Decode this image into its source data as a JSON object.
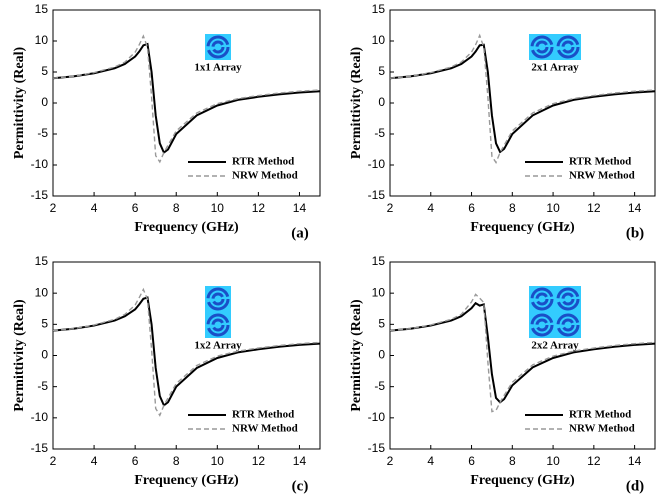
{
  "chart_data": [
    {
      "type": "line",
      "inset_label": "1x1 Array",
      "panel_label": "(a)",
      "xlabel": "Frequency (GHz)",
      "ylabel": "Permittivity (Real)",
      "x": [
        2,
        3,
        4,
        5,
        5.5,
        6,
        6.2,
        6.4,
        6.6,
        6.8,
        7,
        7.2,
        7.4,
        7.6,
        8,
        9,
        10,
        11,
        12,
        13,
        14,
        15
      ],
      "series": [
        {
          "name": "RTR Method",
          "color": "#000000",
          "values": [
            4.0,
            4.3,
            4.8,
            5.6,
            6.3,
            7.5,
            8.3,
            9.3,
            9.5,
            5,
            -2,
            -6.5,
            -8,
            -7.5,
            -5,
            -2,
            -0.4,
            0.5,
            1.0,
            1.4,
            1.7,
            1.9
          ]
        },
        {
          "name": "NRW Method",
          "color": "#999999",
          "values": [
            4.0,
            4.3,
            4.9,
            5.8,
            6.6,
            8.2,
            9.4,
            10.8,
            9,
            1,
            -8.5,
            -9.5,
            -8,
            -6.8,
            -4.5,
            -1.6,
            -0.1,
            0.7,
            1.2,
            1.6,
            1.9,
            2.1
          ]
        }
      ],
      "xlim": [
        2,
        15
      ],
      "xticks": [
        2,
        4,
        6,
        8,
        10,
        12,
        14
      ],
      "ylim": [
        -15,
        15
      ],
      "yticks": [
        -15,
        -10,
        -5,
        0,
        5,
        10,
        15
      ],
      "legend": "lower right"
    },
    {
      "type": "line",
      "inset_label": "2x1 Array",
      "panel_label": "(b)",
      "xlabel": "Frequency (GHz)",
      "ylabel": "Permittivity (Real)",
      "x": [
        2,
        3,
        4,
        5,
        5.5,
        6,
        6.2,
        6.4,
        6.6,
        6.8,
        7,
        7.2,
        7.4,
        7.6,
        8,
        9,
        10,
        11,
        12,
        13,
        14,
        15
      ],
      "series": [
        {
          "name": "RTR Method",
          "color": "#000000",
          "values": [
            4.0,
            4.3,
            4.8,
            5.6,
            6.3,
            7.5,
            8.3,
            9.3,
            9.4,
            5,
            -2,
            -6.5,
            -7.9,
            -7.4,
            -5,
            -2,
            -0.4,
            0.5,
            1.0,
            1.4,
            1.7,
            1.9
          ]
        },
        {
          "name": "NRW Method",
          "color": "#999999",
          "values": [
            4.0,
            4.3,
            4.9,
            5.8,
            6.6,
            8.2,
            9.4,
            10.9,
            9,
            1,
            -8.6,
            -9.6,
            -8,
            -6.8,
            -4.5,
            -1.6,
            -0.1,
            0.7,
            1.2,
            1.6,
            1.9,
            2.1
          ]
        }
      ],
      "xlim": [
        2,
        15
      ],
      "xticks": [
        2,
        4,
        6,
        8,
        10,
        12,
        14
      ],
      "ylim": [
        -15,
        15
      ],
      "yticks": [
        -15,
        -10,
        -5,
        0,
        5,
        10,
        15
      ],
      "legend": "lower right"
    },
    {
      "type": "line",
      "inset_label": "1x2 Array",
      "panel_label": "(c)",
      "xlabel": "Frequency (GHz)",
      "ylabel": "Permittivity (Real)",
      "x": [
        2,
        3,
        4,
        5,
        5.5,
        6,
        6.2,
        6.4,
        6.6,
        6.8,
        7,
        7.2,
        7.4,
        7.6,
        8,
        9,
        10,
        11,
        12,
        13,
        14,
        15
      ],
      "series": [
        {
          "name": "RTR Method",
          "color": "#000000",
          "values": [
            4.0,
            4.3,
            4.8,
            5.6,
            6.3,
            7.4,
            8.2,
            9.1,
            9.3,
            5,
            -2,
            -6.5,
            -8,
            -7.5,
            -5,
            -2,
            -0.4,
            0.5,
            1.0,
            1.4,
            1.7,
            1.9
          ]
        },
        {
          "name": "NRW Method",
          "color": "#999999",
          "values": [
            4.0,
            4.3,
            4.9,
            5.8,
            6.6,
            8.1,
            9.3,
            10.6,
            9,
            1,
            -8.5,
            -9.6,
            -8,
            -6.8,
            -4.5,
            -1.6,
            -0.1,
            0.7,
            1.2,
            1.6,
            1.9,
            2.1
          ]
        }
      ],
      "xlim": [
        2,
        15
      ],
      "xticks": [
        2,
        4,
        6,
        8,
        10,
        12,
        14
      ],
      "ylim": [
        -15,
        15
      ],
      "yticks": [
        -15,
        -10,
        -5,
        0,
        5,
        10,
        15
      ],
      "legend": "lower right"
    },
    {
      "type": "line",
      "inset_label": "2x2 Array",
      "panel_label": "(d)",
      "xlabel": "Frequency (GHz)",
      "ylabel": "Permittivity (Real)",
      "x": [
        2,
        3,
        4,
        5,
        5.5,
        6,
        6.2,
        6.4,
        6.6,
        6.8,
        7,
        7.2,
        7.4,
        7.6,
        8,
        9,
        10,
        11,
        12,
        13,
        14,
        15
      ],
      "series": [
        {
          "name": "RTR Method",
          "color": "#000000",
          "values": [
            4.0,
            4.3,
            4.8,
            5.6,
            6.3,
            7.6,
            8.4,
            8.0,
            8.2,
            3,
            -3,
            -6.8,
            -7.5,
            -7,
            -4.8,
            -1.9,
            -0.4,
            0.5,
            1.0,
            1.4,
            1.7,
            1.9
          ]
        },
        {
          "name": "NRW Method",
          "color": "#999999",
          "values": [
            4.0,
            4.3,
            4.9,
            5.8,
            6.6,
            8.6,
            9.8,
            9.2,
            8.5,
            -1,
            -9.0,
            -8.8,
            -7.5,
            -6.4,
            -4.3,
            -1.5,
            -0.1,
            0.7,
            1.2,
            1.6,
            1.9,
            2.1
          ]
        }
      ],
      "xlim": [
        2,
        15
      ],
      "xticks": [
        2,
        4,
        6,
        8,
        10,
        12,
        14
      ],
      "ylim": [
        -15,
        15
      ],
      "yticks": [
        -15,
        -10,
        -5,
        0,
        5,
        10,
        15
      ],
      "legend": "lower right"
    }
  ]
}
